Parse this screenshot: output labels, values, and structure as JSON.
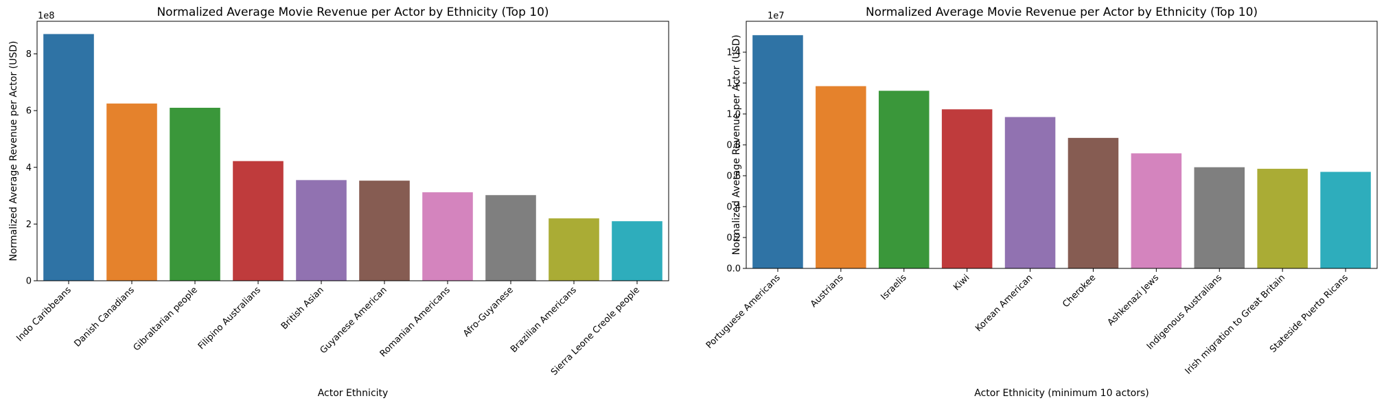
{
  "chart_data": [
    {
      "type": "bar",
      "title": "Normalized Average Movie Revenue per Actor by Ethnicity (Top 10)",
      "xlabel": "Actor Ethnicity",
      "ylabel": "Normalized Average Revenue per Actor (USD)",
      "y_offset_label": "1e8",
      "y_scale": 100000000,
      "ylim": [
        0,
        9.15
      ],
      "yticks": [
        0,
        2,
        4,
        6,
        8
      ],
      "ytick_labels": [
        "0",
        "2",
        "4",
        "6",
        "8"
      ],
      "grid": false,
      "categories": [
        "Indo Caribbeans",
        "Danish Canadians",
        "Gibraltarian people",
        "Filipino Australians",
        "British Asian",
        "Guyanese American",
        "Romanian Americans",
        "Afro-Guyanese",
        "Brazilian Americans",
        "Sierra Leone Creole people"
      ],
      "values": [
        8.7,
        6.25,
        6.1,
        4.22,
        3.55,
        3.53,
        3.12,
        3.02,
        2.2,
        2.1
      ],
      "colors": [
        "#2f73a5",
        "#e5822c",
        "#3a973a",
        "#bf3b3c",
        "#9172b1",
        "#865c52",
        "#d484be",
        "#7f7f7f",
        "#aaac35",
        "#2eadbc"
      ]
    },
    {
      "type": "bar",
      "title": "Normalized Average Movie Revenue per Actor by Ethnicity (Top 10)",
      "xlabel": "Actor Ethnicity (minimum 10 actors)",
      "ylabel": "Normalized Average Revenue per Actor (USD)",
      "y_offset_label": "1e7",
      "y_scale": 10000000,
      "ylim": [
        0,
        1.6
      ],
      "yticks": [
        0,
        0.2,
        0.4,
        0.6,
        0.8,
        1.0,
        1.2,
        1.4
      ],
      "ytick_labels": [
        "0.0",
        "0.2",
        "0.4",
        "0.6",
        "0.8",
        "1.0",
        "1.2",
        "1.4"
      ],
      "grid": false,
      "categories": [
        "Portuguese Americans",
        "Austrians",
        "Israelis",
        "Kiwi",
        "Korean American",
        "Cherokee",
        "Ashkenazi Jews",
        "Indigenous Australians",
        "Irish migration to Great Britain",
        "Stateside Puerto Ricans"
      ],
      "values": [
        1.51,
        1.18,
        1.15,
        1.03,
        0.98,
        0.845,
        0.745,
        0.655,
        0.645,
        0.625
      ],
      "colors": [
        "#2f73a5",
        "#e5822c",
        "#3a973a",
        "#bf3b3c",
        "#9172b1",
        "#865c52",
        "#d484be",
        "#7f7f7f",
        "#aaac35",
        "#2eadbc"
      ]
    }
  ]
}
